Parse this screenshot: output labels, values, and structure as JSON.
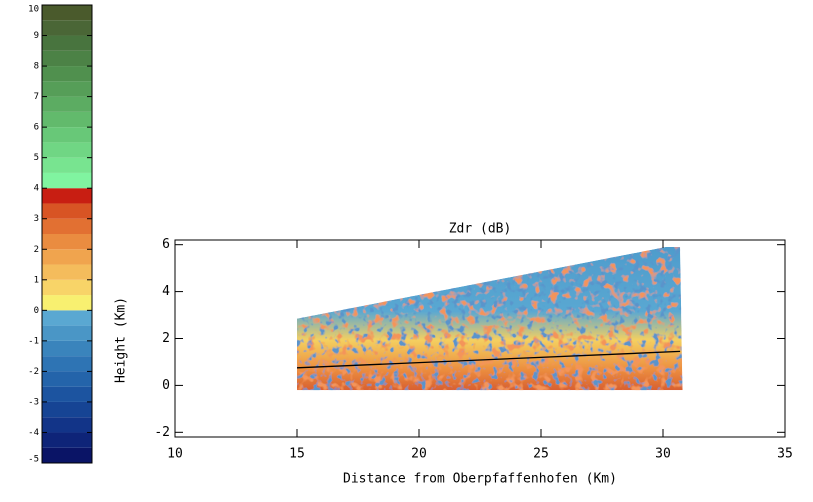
{
  "chart_data": {
    "type": "radar-rhi",
    "title": "Zdr (dB)",
    "x_label": "Distance from Oberpfaffenhofen (Km)",
    "y_label": "Height (Km)",
    "xlim": [
      10,
      35
    ],
    "xticks": [
      10,
      15,
      20,
      25,
      30,
      35
    ],
    "ylim": [
      -2.2,
      6.2
    ],
    "yticks": [
      -2,
      0,
      2,
      4,
      6
    ],
    "coverage": {
      "x": [
        15,
        15,
        30.1,
        30.7,
        30.8
      ],
      "y": [
        -0.2,
        2.85,
        5.9,
        5.9,
        -0.2
      ]
    },
    "series": [
      {
        "color": "#000000",
        "x": [
          15,
          30.7
        ],
        "y": [
          0.75,
          1.45
        ]
      }
    ],
    "colorbar": {
      "lim": [
        -5,
        10
      ],
      "ticks": [
        -5,
        -4,
        -3,
        -2,
        -1,
        0,
        1,
        2,
        3,
        4,
        5,
        6,
        7,
        8,
        9,
        10
      ],
      "bounds": [
        -5,
        -4.5,
        -4,
        -3.5,
        -3,
        -2.5,
        -2,
        -1.5,
        -1,
        -0.5,
        0,
        0.5,
        1,
        1.5,
        2,
        2.5,
        3,
        3.5,
        4,
        4.5,
        5,
        5.5,
        6,
        6.5,
        7,
        7.5,
        8,
        8.5,
        9,
        9.5,
        10
      ],
      "colors": [
        "#0a1466",
        "#0e2478",
        "#123488",
        "#164494",
        "#1c54a0",
        "#2464aa",
        "#2e74b4",
        "#3a84bc",
        "#4a96c6",
        "#5aa8d2",
        "#f8f070",
        "#f8d468",
        "#f4bc5c",
        "#f0a44e",
        "#ea8c40",
        "#e27032",
        "#d85424",
        "#c81e12",
        "#80f4a0",
        "#78e490",
        "#70d684",
        "#68c878",
        "#62ba6c",
        "#5cac62",
        "#569e58",
        "#50904e",
        "#4c8246",
        "#48743e",
        "#4a6636",
        "#4a5a2c"
      ]
    }
  }
}
